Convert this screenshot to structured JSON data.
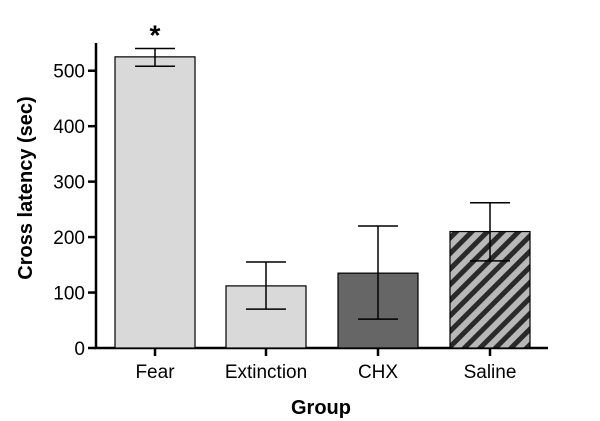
{
  "chart_data": {
    "type": "bar",
    "categories": [
      "Fear",
      "Extinction",
      "CHX",
      "Saline"
    ],
    "values": [
      525,
      112,
      135,
      210
    ],
    "error_upper": [
      540,
      155,
      220,
      262
    ],
    "error_lower": [
      508,
      70,
      52,
      157
    ],
    "annotations": [
      {
        "category": "Fear",
        "text": "*"
      }
    ],
    "xlabel": "Group",
    "ylabel": "Cross latency (sec)",
    "ylim": [
      0,
      550
    ],
    "yticks": [
      0,
      100,
      200,
      300,
      400,
      500
    ],
    "ytick_labels": [
      "0",
      "100",
      "200",
      "300",
      "400",
      "500"
    ],
    "grid": false,
    "bar_fills": [
      {
        "category": "Fear",
        "color": "#d9d9d9",
        "pattern": "solid"
      },
      {
        "category": "Extinction",
        "color": "#d9d9d9",
        "pattern": "solid"
      },
      {
        "category": "CHX",
        "color": "#666666",
        "pattern": "solid"
      },
      {
        "category": "Saline",
        "color": "#b3b3b3",
        "pattern": "diagonal-hatch"
      }
    ]
  }
}
